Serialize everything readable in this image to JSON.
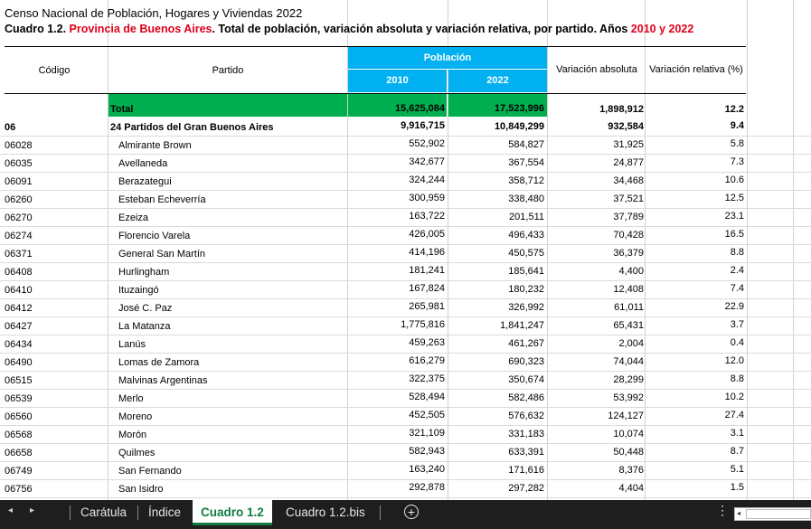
{
  "title_line1": "Censo Nacional de Población, Hogares y Viviendas 2022",
  "title_line2": {
    "prefix": "Cuadro 1.2. ",
    "province": "Provincia de Buenos Aires",
    "middle": ". Total de población, variación absoluta y variación relativa, por partido. Años ",
    "years": "2010 y 2022"
  },
  "headers": {
    "codigo": "Código",
    "partido": "Partido",
    "poblacion": "Población",
    "y2010": "2010",
    "y2022": "2022",
    "var_abs": "Variación absoluta",
    "var_rel": "Variación relativa (%)"
  },
  "total_row": {
    "label": "Total",
    "p2010": "15,625,084",
    "p2022": "17,523,996",
    "abs": "1,898,912",
    "rel": "12.2"
  },
  "gba_row": {
    "code": "06",
    "label": "24 Partidos del Gran Buenos Aires",
    "p2010": "9,916,715",
    "p2022": "10,849,299",
    "abs": "932,584",
    "rel": "9.4"
  },
  "rows": [
    {
      "code": "06028",
      "name": "Almirante Brown",
      "p2010": "552,902",
      "p2022": "584,827",
      "abs": "31,925",
      "rel": "5.8"
    },
    {
      "code": "06035",
      "name": "Avellaneda",
      "p2010": "342,677",
      "p2022": "367,554",
      "abs": "24,877",
      "rel": "7.3"
    },
    {
      "code": "06091",
      "name": "Berazategui",
      "p2010": "324,244",
      "p2022": "358,712",
      "abs": "34,468",
      "rel": "10.6"
    },
    {
      "code": "06260",
      "name": "Esteban Echeverría",
      "p2010": "300,959",
      "p2022": "338,480",
      "abs": "37,521",
      "rel": "12.5"
    },
    {
      "code": "06270",
      "name": "Ezeiza",
      "p2010": "163,722",
      "p2022": "201,511",
      "abs": "37,789",
      "rel": "23.1"
    },
    {
      "code": "06274",
      "name": "Florencio Varela",
      "p2010": "426,005",
      "p2022": "496,433",
      "abs": "70,428",
      "rel": "16.5"
    },
    {
      "code": "06371",
      "name": "General San Martín",
      "p2010": "414,196",
      "p2022": "450,575",
      "abs": "36,379",
      "rel": "8.8"
    },
    {
      "code": "06408",
      "name": "Hurlingham",
      "p2010": "181,241",
      "p2022": "185,641",
      "abs": "4,400",
      "rel": "2.4"
    },
    {
      "code": "06410",
      "name": "Ituzaingó",
      "p2010": "167,824",
      "p2022": "180,232",
      "abs": "12,408",
      "rel": "7.4"
    },
    {
      "code": "06412",
      "name": "José C. Paz",
      "p2010": "265,981",
      "p2022": "326,992",
      "abs": "61,011",
      "rel": "22.9"
    },
    {
      "code": "06427",
      "name": "La Matanza",
      "p2010": "1,775,816",
      "p2022": "1,841,247",
      "abs": "65,431",
      "rel": "3.7"
    },
    {
      "code": "06434",
      "name": "Lanús",
      "p2010": "459,263",
      "p2022": "461,267",
      "abs": "2,004",
      "rel": "0.4"
    },
    {
      "code": "06490",
      "name": "Lomas de Zamora",
      "p2010": "616,279",
      "p2022": "690,323",
      "abs": "74,044",
      "rel": "12.0"
    },
    {
      "code": "06515",
      "name": "Malvinas Argentinas",
      "p2010": "322,375",
      "p2022": "350,674",
      "abs": "28,299",
      "rel": "8.8"
    },
    {
      "code": "06539",
      "name": "Merlo",
      "p2010": "528,494",
      "p2022": "582,486",
      "abs": "53,992",
      "rel": "10.2"
    },
    {
      "code": "06560",
      "name": "Moreno",
      "p2010": "452,505",
      "p2022": "576,632",
      "abs": "124,127",
      "rel": "27.4"
    },
    {
      "code": "06568",
      "name": "Morón",
      "p2010": "321,109",
      "p2022": "331,183",
      "abs": "10,074",
      "rel": "3.1"
    },
    {
      "code": "06658",
      "name": "Quilmes",
      "p2010": "582,943",
      "p2022": "633,391",
      "abs": "50,448",
      "rel": "8.7"
    },
    {
      "code": "06749",
      "name": "San Fernando",
      "p2010": "163,240",
      "p2022": "171,616",
      "abs": "8,376",
      "rel": "5.1"
    },
    {
      "code": "06756",
      "name": "San Isidro",
      "p2010": "292,878",
      "p2022": "297,282",
      "abs": "4,404",
      "rel": "1.5"
    }
  ],
  "tabs": [
    "Carátula",
    "Índice",
    "Cuadro 1.2",
    "Cuadro 1.2.bis"
  ],
  "active_tab": "Cuadro 1.2",
  "colors": {
    "header_blue": "#00b0f0",
    "total_green": "#00b050",
    "accent_red": "#e0001b",
    "active_tab": "#107c41"
  }
}
